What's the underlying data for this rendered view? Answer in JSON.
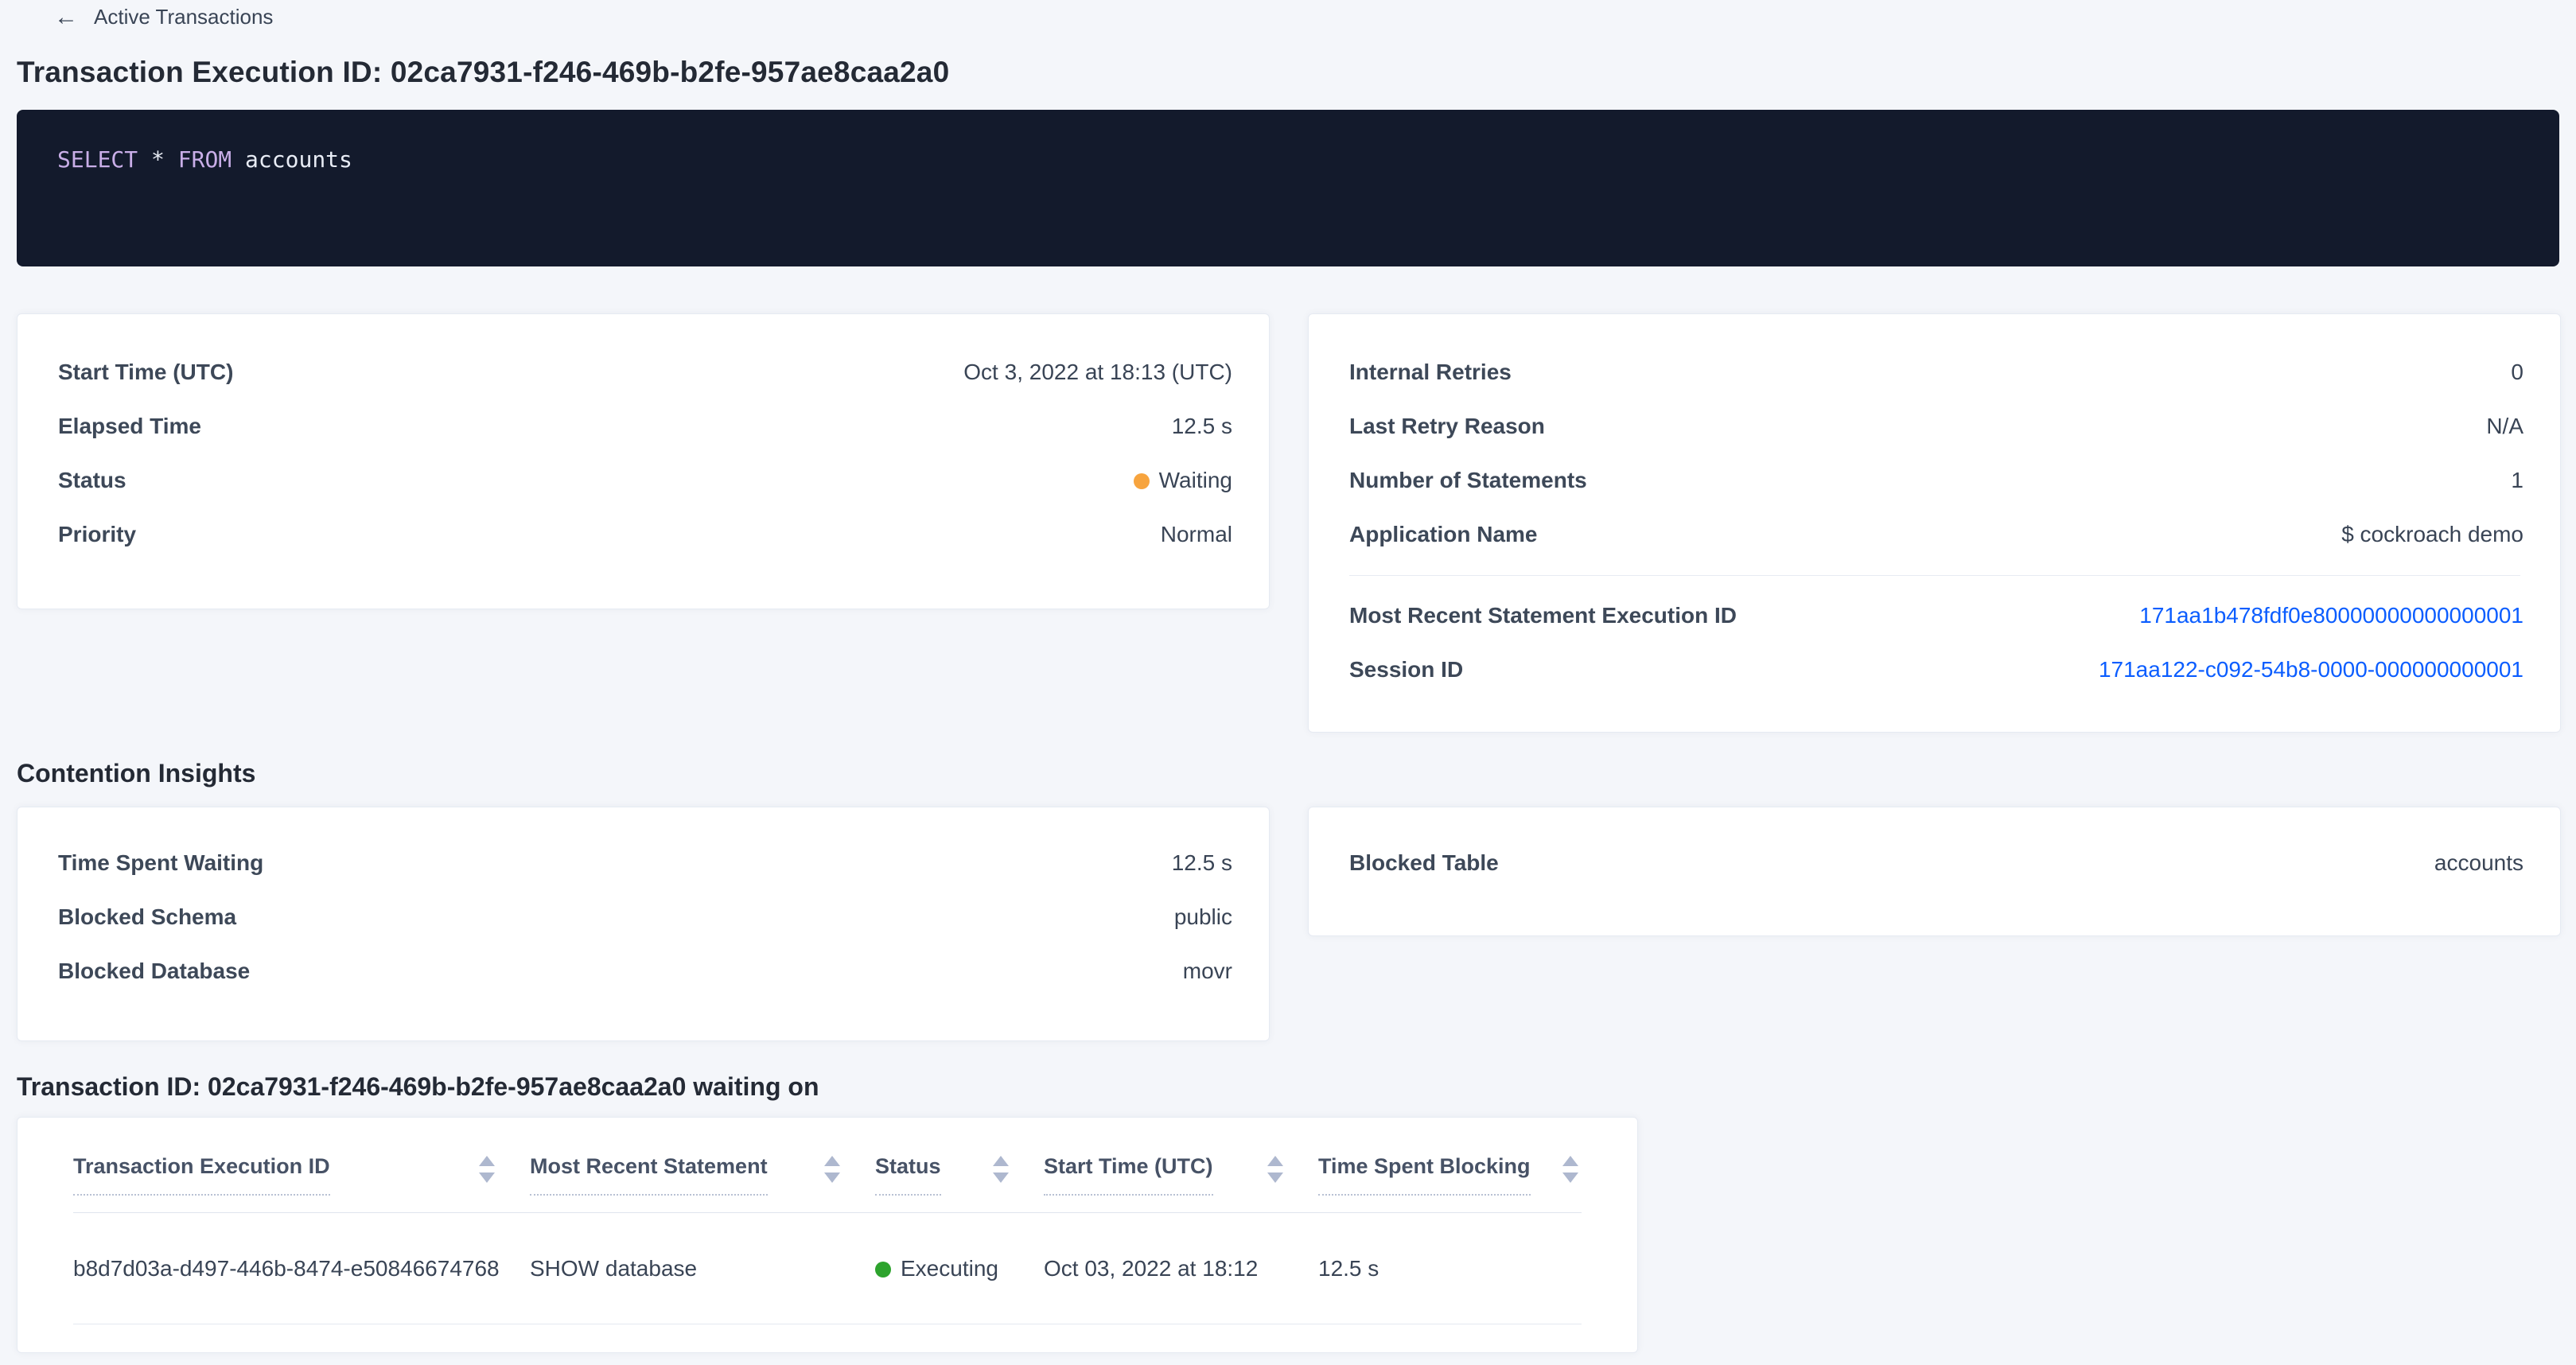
{
  "header": {
    "back_label": "Active Transactions",
    "title": "Transaction Execution ID: 02ca7931-f246-469b-b2fe-957ae8caa2a0"
  },
  "sql_box": {
    "keyword_select": "SELECT",
    "star": "*",
    "keyword_from": "FROM",
    "identifier": "accounts",
    "background_color": "#131a2c",
    "keyword_color": "#c9aee8",
    "text_color": "#e8ecf5"
  },
  "summary_left": {
    "rows": [
      {
        "label": "Start Time (UTC)",
        "value": "Oct 3, 2022 at 18:13 (UTC)"
      },
      {
        "label": "Elapsed Time",
        "value": "12.5 s"
      },
      {
        "label": "Status",
        "value": "Waiting",
        "dot_color": "#f7a43e"
      },
      {
        "label": "Priority",
        "value": "Normal"
      }
    ]
  },
  "summary_right": {
    "rows": [
      {
        "label": "Internal Retries",
        "value": "0"
      },
      {
        "label": "Last Retry Reason",
        "value": "N/A"
      },
      {
        "label": "Number of Statements",
        "value": "1"
      },
      {
        "label": "Application Name",
        "value": "$ cockroach demo"
      }
    ],
    "link_rows": [
      {
        "label": "Most Recent Statement Execution ID",
        "value": "171aa1b478fdf0e80000000000000001"
      },
      {
        "label": "Session ID",
        "value": "171aa122-c092-54b8-0000-000000000001"
      }
    ],
    "link_color": "#0b5dff"
  },
  "contention": {
    "heading": "Contention Insights",
    "left_rows": [
      {
        "label": "Time Spent Waiting",
        "value": "12.5 s"
      },
      {
        "label": "Blocked Schema",
        "value": "public"
      },
      {
        "label": "Blocked Database",
        "value": "movr"
      }
    ],
    "right_rows": [
      {
        "label": "Blocked Table",
        "value": "accounts"
      }
    ]
  },
  "waiting_table": {
    "heading": "Transaction ID: 02ca7931-f246-469b-b2fe-957ae8caa2a0 waiting on",
    "columns": [
      "Transaction Execution ID",
      "Most Recent Statement",
      "Status",
      "Start Time (UTC)",
      "Time Spent Blocking"
    ],
    "row": {
      "transaction_execution_id": "b8d7d03a-d497-446b-8474-e50846674768",
      "most_recent_statement": "SHOW database",
      "status": "Executing",
      "status_dot_color": "#2da32d",
      "start_time": "Oct 03, 2022 at 18:12",
      "time_spent_blocking": "12.5 s"
    }
  },
  "colors": {
    "page_background": "#f4f6fa",
    "card_background": "#ffffff",
    "card_border": "#e6eaf2",
    "heading_text": "#242a35",
    "body_text": "#394455",
    "link_blue": "#0b5dff",
    "status_waiting_orange": "#f7a43e",
    "status_executing_green": "#2da32d",
    "sort_arrow_gray": "#aeb8cf"
  }
}
